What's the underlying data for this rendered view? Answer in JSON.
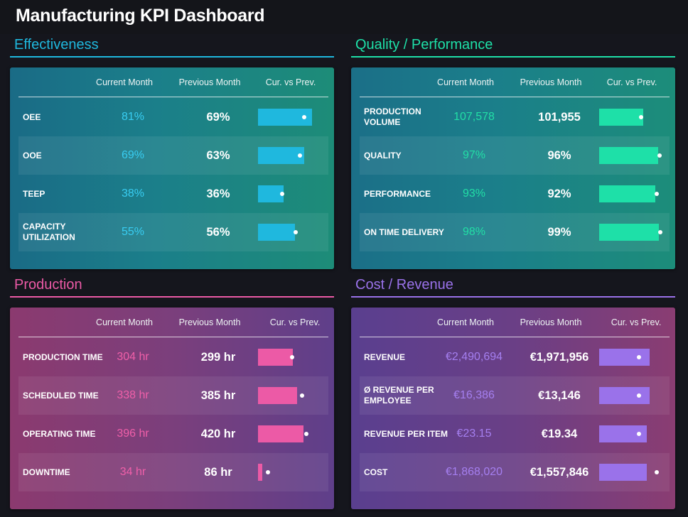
{
  "dashboard": {
    "title": "Manufacturing KPI Dashboard"
  },
  "columns": {
    "current": "Current Month",
    "previous": "Previous Month",
    "compare": "Cur. vs Prev."
  },
  "sections": [
    {
      "title": "Effectiveness",
      "accent": "#1fb8de",
      "rows": [
        {
          "label": "OEE",
          "current": "81%",
          "previous": "69%",
          "bar_fraction": 0.81,
          "marker_fraction": 0.69
        },
        {
          "label": "OOE",
          "current": "69%",
          "previous": "63%",
          "bar_fraction": 0.69,
          "marker_fraction": 0.63
        },
        {
          "label": "TEEP",
          "current": "38%",
          "previous": "36%",
          "bar_fraction": 0.38,
          "marker_fraction": 0.36
        },
        {
          "label": "CAPACITY UTILIZATION",
          "current": "55%",
          "previous": "56%",
          "bar_fraction": 0.55,
          "marker_fraction": 0.56
        }
      ]
    },
    {
      "title": "Quality / Performance",
      "accent": "#1ee0a8",
      "rows": [
        {
          "label": "PRODUCTION VOLUME",
          "current": "107,578",
          "previous": "101,955",
          "bar_fraction": 0.66,
          "marker_fraction": 0.63
        },
        {
          "label": "QUALITY",
          "current": "97%",
          "previous": "96%",
          "bar_fraction": 0.88,
          "marker_fraction": 0.9
        },
        {
          "label": "PERFORMANCE",
          "current": "93%",
          "previous": "92%",
          "bar_fraction": 0.84,
          "marker_fraction": 0.86
        },
        {
          "label": "ON TIME DELIVERY",
          "current": "98%",
          "previous": "99%",
          "bar_fraction": 0.89,
          "marker_fraction": 0.92
        }
      ]
    },
    {
      "title": "Production",
      "accent": "#ec5aa6",
      "rows": [
        {
          "label": "PRODUCTION TIME",
          "current": "304 hr",
          "previous": "299 hr",
          "bar_fraction": 0.52,
          "marker_fraction": 0.51
        },
        {
          "label": "SCHEDULED TIME",
          "current": "338 hr",
          "previous": "385 hr",
          "bar_fraction": 0.58,
          "marker_fraction": 0.66
        },
        {
          "label": "OPERATING TIME",
          "current": "396 hr",
          "previous": "420 hr",
          "bar_fraction": 0.68,
          "marker_fraction": 0.72
        },
        {
          "label": "DOWNTIME",
          "current": "34 hr",
          "previous": "86 hr",
          "bar_fraction": 0.06,
          "marker_fraction": 0.15
        }
      ]
    },
    {
      "title": "Cost / Revenue",
      "accent": "#9a72ea",
      "rows": [
        {
          "label": "REVENUE",
          "current": "€2,490,694",
          "previous": "€1,971,956",
          "bar_fraction": 0.76,
          "marker_fraction": 0.6
        },
        {
          "label": "Ø REVENUE PER EMPLOYEE",
          "current": "€16,386",
          "previous": "€13,146",
          "bar_fraction": 0.75,
          "marker_fraction": 0.6
        },
        {
          "label": "REVENUE PER ITEM",
          "current": "€23.15",
          "previous": "€19.34",
          "bar_fraction": 0.71,
          "marker_fraction": 0.6
        },
        {
          "label": "COST",
          "current": "€1,868,020",
          "previous": "€1,557,846",
          "bar_fraction": 0.71,
          "marker_fraction": 0.86
        }
      ]
    }
  ]
}
